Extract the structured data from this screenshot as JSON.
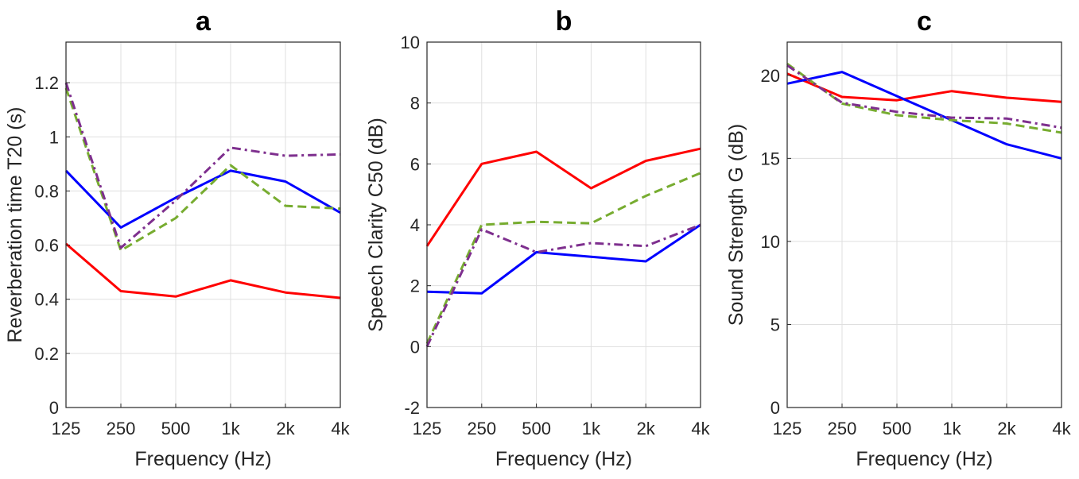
{
  "chart_data": [
    {
      "type": "line",
      "panel": "a",
      "title": "a",
      "xlabel": "Frequency (Hz)",
      "ylabel": "Reverberation time T20 (s)",
      "categories": [
        "125",
        "250",
        "500",
        "1k",
        "2k",
        "4k"
      ],
      "ylim": [
        0,
        1.35
      ],
      "yticks": [
        0,
        0.2,
        0.4,
        0.6,
        0.8,
        1,
        1.2
      ],
      "ytick_labels": [
        "0",
        "0.2",
        "0.4",
        "0.6",
        "0.8",
        "1",
        "1.2"
      ],
      "grid": true,
      "series": [
        {
          "name": "red",
          "color": "#ff0000",
          "dash": "solid",
          "values": [
            0.605,
            0.43,
            0.41,
            0.47,
            0.425,
            0.405
          ]
        },
        {
          "name": "blue",
          "color": "#0000ff",
          "dash": "solid",
          "values": [
            0.875,
            0.665,
            0.775,
            0.875,
            0.835,
            0.72
          ]
        },
        {
          "name": "green",
          "color": "#77ac30",
          "dash": "dashed",
          "values": [
            1.18,
            0.58,
            0.7,
            0.895,
            0.745,
            0.735
          ]
        },
        {
          "name": "purple",
          "color": "#7e2f8e",
          "dash": "dashdot",
          "values": [
            1.2,
            0.59,
            0.765,
            0.96,
            0.93,
            0.935
          ]
        }
      ]
    },
    {
      "type": "line",
      "panel": "b",
      "title": "b",
      "xlabel": "Frequency (Hz)",
      "ylabel": "Speech Clarity C50 (dB)",
      "categories": [
        "125",
        "250",
        "500",
        "1k",
        "2k",
        "4k"
      ],
      "ylim": [
        -2,
        10
      ],
      "yticks": [
        -2,
        0,
        2,
        4,
        6,
        8,
        10
      ],
      "ytick_labels": [
        "-2",
        "0",
        "2",
        "4",
        "6",
        "8",
        "10"
      ],
      "grid": true,
      "series": [
        {
          "name": "red",
          "color": "#ff0000",
          "dash": "solid",
          "values": [
            3.3,
            6.0,
            6.4,
            5.2,
            6.1,
            6.5
          ]
        },
        {
          "name": "blue",
          "color": "#0000ff",
          "dash": "solid",
          "values": [
            1.8,
            1.75,
            3.1,
            2.95,
            2.8,
            4.0
          ]
        },
        {
          "name": "green",
          "color": "#77ac30",
          "dash": "dashed",
          "values": [
            0.1,
            4.0,
            4.1,
            4.05,
            4.95,
            5.7
          ]
        },
        {
          "name": "purple",
          "color": "#7e2f8e",
          "dash": "dashdot",
          "values": [
            0.0,
            3.85,
            3.1,
            3.4,
            3.3,
            4.0
          ]
        }
      ]
    },
    {
      "type": "line",
      "panel": "c",
      "title": "c",
      "xlabel": "Frequency (Hz)",
      "ylabel": "Sound Strength G (dB)",
      "categories": [
        "125",
        "250",
        "500",
        "1k",
        "2k",
        "4k"
      ],
      "ylim": [
        0,
        22
      ],
      "yticks": [
        0,
        5,
        10,
        15,
        20
      ],
      "ytick_labels": [
        "0",
        "5",
        "10",
        "15",
        "20"
      ],
      "grid": true,
      "series": [
        {
          "name": "red",
          "color": "#ff0000",
          "dash": "solid",
          "values": [
            20.1,
            18.7,
            18.5,
            19.05,
            18.65,
            18.4
          ]
        },
        {
          "name": "blue",
          "color": "#0000ff",
          "dash": "solid",
          "values": [
            19.5,
            20.2,
            18.75,
            17.3,
            15.85,
            15.0
          ]
        },
        {
          "name": "green",
          "color": "#77ac30",
          "dash": "dashed",
          "values": [
            20.7,
            18.3,
            17.6,
            17.3,
            17.1,
            16.55
          ]
        },
        {
          "name": "purple",
          "color": "#7e2f8e",
          "dash": "dashdot",
          "values": [
            20.6,
            18.35,
            17.8,
            17.45,
            17.4,
            16.85
          ]
        }
      ]
    }
  ]
}
